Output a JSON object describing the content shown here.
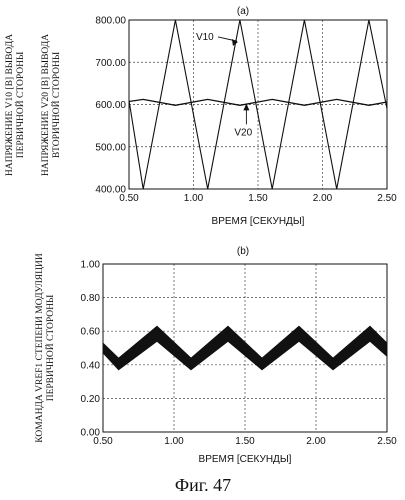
{
  "figure": {
    "caption": "Фиг. 47"
  },
  "chart_data": [
    {
      "type": "line",
      "panel_label": "(a)",
      "xlabel": "ВРЕМЯ [СЕКУНДЫ]",
      "ylabel_lines_outer": [
        "НАПРЯЖЕНИЕ V10 [В] ВЫВОДА",
        "ПЕРВИЧНОЙ СТОРОНЫ"
      ],
      "ylabel_lines_inner": [
        "НАПРЯЖЕНИЕ V20 [В] ВЫВОДА",
        "ВТОРИЧНОЙ СТОРОНЫ"
      ],
      "xlim": [
        0.5,
        2.5
      ],
      "ylim": [
        400,
        800
      ],
      "xticks": [
        "0.50",
        "1.00",
        "1.50",
        "2.00",
        "2.50"
      ],
      "yticks": [
        "400.00",
        "500.00",
        "600.00",
        "700.00",
        "800.00"
      ],
      "grid": true,
      "series": [
        {
          "name": "V10",
          "x": [
            0.5,
            0.61,
            0.86,
            1.11,
            1.36,
            1.61,
            1.86,
            2.11,
            2.36,
            2.5
          ],
          "y": [
            610,
            400,
            800,
            400,
            800,
            400,
            800,
            400,
            800,
            590
          ]
        },
        {
          "name": "V20",
          "x": [
            0.5,
            0.61,
            0.86,
            1.11,
            1.36,
            1.61,
            1.86,
            2.11,
            2.36,
            2.5
          ],
          "y": [
            607,
            612,
            598,
            612,
            598,
            612,
            598,
            612,
            598,
            606
          ]
        }
      ],
      "annotations": [
        {
          "text": "V10",
          "series": "V10"
        },
        {
          "text": "V20",
          "series": "V20"
        }
      ]
    },
    {
      "type": "area",
      "panel_label": "(b)",
      "xlabel": "ВРЕМЯ [СЕКУНДЫ]",
      "ylabel_lines": [
        "КОМАНДА VREF1 СТЕПЕНИ МОДУЛЯЦИИ",
        "ПЕРВИЧНОЙ СТОРОНЫ"
      ],
      "xlim": [
        0.5,
        2.5
      ],
      "ylim": [
        0,
        1
      ],
      "xticks": [
        "0.50",
        "1.00",
        "1.50",
        "2.00",
        "2.50"
      ],
      "yticks": [
        "0.00",
        "0.20",
        "0.40",
        "0.60",
        "0.80",
        "1.00"
      ],
      "grid": true,
      "series": [
        {
          "name": "upper",
          "x": [
            0.5,
            0.61,
            0.88,
            1.12,
            1.38,
            1.62,
            1.88,
            2.12,
            2.38,
            2.5
          ],
          "y": [
            0.53,
            0.44,
            0.63,
            0.44,
            0.63,
            0.44,
            0.63,
            0.44,
            0.63,
            0.53
          ]
        },
        {
          "name": "lower",
          "x": [
            0.5,
            0.61,
            0.88,
            1.12,
            1.38,
            1.62,
            1.88,
            2.12,
            2.38,
            2.5
          ],
          "y": [
            0.47,
            0.37,
            0.54,
            0.37,
            0.54,
            0.37,
            0.54,
            0.37,
            0.54,
            0.45
          ]
        }
      ]
    }
  ]
}
